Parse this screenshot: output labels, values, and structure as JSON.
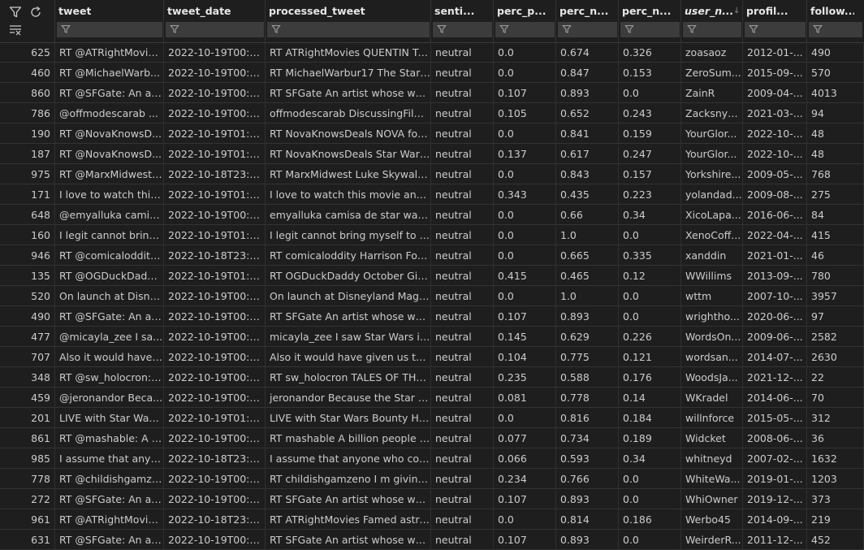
{
  "columns": [
    {
      "key": "idx",
      "label": ""
    },
    {
      "key": "tweet",
      "label": "tweet"
    },
    {
      "key": "tweet_date",
      "label": "tweet_date"
    },
    {
      "key": "processed_tweet",
      "label": "processed_tweet"
    },
    {
      "key": "sentiment",
      "label": "senti..."
    },
    {
      "key": "perc_pos",
      "label": "perc_p..."
    },
    {
      "key": "perc_neg",
      "label": "perc_n..."
    },
    {
      "key": "perc_neu",
      "label": "perc_n..."
    },
    {
      "key": "user_name",
      "label": "user_n...",
      "sorted": "descending"
    },
    {
      "key": "profile",
      "label": "profil..."
    },
    {
      "key": "followers",
      "label": "follow..."
    }
  ],
  "icons": {
    "filter": "filter-icon",
    "refresh": "refresh-icon",
    "clear_filters": "clear-filters-icon",
    "sort_desc": "sort-descending-icon"
  },
  "rows": [
    [
      "625",
      "RT @ATRightMovie...",
      "2022-10-19T00:2...",
      "RT ATRightMovies QUENTIN TA...",
      "neutral",
      "0.0",
      "0.674",
      "0.326",
      "zoasaoz",
      "2012-01-...",
      "490"
    ],
    [
      "460",
      "RT @MichaelWarb...",
      "2022-10-19T00:4...",
      "RT MichaelWarbur17 The Star ...",
      "neutral",
      "0.0",
      "0.847",
      "0.153",
      "ZeroSum...",
      "2015-09-...",
      "570"
    ],
    [
      "860",
      "RT @SFGate: An art...",
      "2022-10-19T00:0...",
      "RT SFGate An artist whose work...",
      "neutral",
      "0.107",
      "0.893",
      "0.0",
      "ZainR",
      "2009-04-...",
      "4013"
    ],
    [
      "786",
      "@offmodescarab ...",
      "2022-10-19T00:0...",
      "offmodescarab DiscussingFilm ...",
      "neutral",
      "0.105",
      "0.652",
      "0.243",
      "Zacksnyd...",
      "2021-03-...",
      "94"
    ],
    [
      "190",
      "RT @NovaKnowsD...",
      "2022-10-19T01:0...",
      "RT NovaKnowsDeals NOVA fou...",
      "neutral",
      "0.0",
      "0.841",
      "0.159",
      "YourGlor...",
      "2022-10-...",
      "48"
    ],
    [
      "187",
      "RT @NovaKnowsD...",
      "2022-10-19T01:0...",
      "RT NovaKnowsDeals Star Wars ...",
      "neutral",
      "0.137",
      "0.617",
      "0.247",
      "YourGlor...",
      "2022-10-...",
      "48"
    ],
    [
      "975",
      "RT @MarxMidwest:...",
      "2022-10-18T23:5...",
      "RT MarxMidwest Luke Skywalke...",
      "neutral",
      "0.0",
      "0.843",
      "0.157",
      "Yorkshire...",
      "2009-05-...",
      "768"
    ],
    [
      "171",
      "I love to watch this ...",
      "2022-10-19T01:0...",
      "I love to watch this movie and a...",
      "neutral",
      "0.343",
      "0.435",
      "0.223",
      "yolandad...",
      "2009-08-...",
      "275"
    ],
    [
      "648",
      "@emyalluka camis...",
      "2022-10-19T00:2...",
      "emyalluka camisa de star wars ...",
      "neutral",
      "0.0",
      "0.66",
      "0.34",
      "XicoLapa...",
      "2016-06-...",
      "84"
    ],
    [
      "160",
      "I legit cannot bring...",
      "2022-10-19T01:0...",
      "I legit cannot bring myself to b...",
      "neutral",
      "0.0",
      "1.0",
      "0.0",
      "XenoCoff...",
      "2022-04-...",
      "415"
    ],
    [
      "946",
      "RT @comicaloddity...",
      "2022-10-18T23:5...",
      "RT comicaloddity Harrison Ford...",
      "neutral",
      "0.0",
      "0.665",
      "0.335",
      "xanddin",
      "2021-01-...",
      "46"
    ],
    [
      "135",
      "RT @OGDuckDadd...",
      "2022-10-19T01:0...",
      "RT OGDuckDaddy October Give...",
      "neutral",
      "0.415",
      "0.465",
      "0.12",
      "WWillims",
      "2013-09-...",
      "780"
    ],
    [
      "520",
      "On launch at Disne...",
      "2022-10-19T00:3...",
      "On launch at Disneyland Magic...",
      "neutral",
      "0.0",
      "1.0",
      "0.0",
      "wttm",
      "2007-10-...",
      "3957"
    ],
    [
      "490",
      "RT @SFGate: An art...",
      "2022-10-19T00:3...",
      "RT SFGate An artist whose work...",
      "neutral",
      "0.107",
      "0.893",
      "0.0",
      "wrightho...",
      "2020-06-...",
      "97"
    ],
    [
      "477",
      "@micayla_zee I sa...",
      "2022-10-19T00:3...",
      "micayla_zee I saw Star Wars in t...",
      "neutral",
      "0.145",
      "0.629",
      "0.226",
      "WordsOn...",
      "2009-06-...",
      "2582"
    ],
    [
      "707",
      "Also it would have ...",
      "2022-10-19T00:1...",
      "Also it would have given us the ...",
      "neutral",
      "0.104",
      "0.775",
      "0.121",
      "wordsan...",
      "2014-07-...",
      "2630"
    ],
    [
      "348",
      "RT @sw_holocron: ...",
      "2022-10-19T00:5...",
      "RT sw_holocron TALES OF THE J...",
      "neutral",
      "0.235",
      "0.588",
      "0.176",
      "WoodsJa...",
      "2021-12-...",
      "22"
    ],
    [
      "459",
      "@jeronandor Beca...",
      "2022-10-19T00:4...",
      "jeronandor Because the Star W...",
      "neutral",
      "0.081",
      "0.778",
      "0.14",
      "WKradel",
      "2014-06-...",
      "70"
    ],
    [
      "201",
      "LIVE with Star Wars...",
      "2022-10-19T01:0...",
      "LIVE with Star Wars Bounty Hun...",
      "neutral",
      "0.0",
      "0.816",
      "0.184",
      "willnforce",
      "2015-05-...",
      "312"
    ],
    [
      "861",
      "RT @mashable: A b...",
      "2022-10-19T00:0...",
      "RT mashable A billion people la...",
      "neutral",
      "0.077",
      "0.734",
      "0.189",
      "Widcket",
      "2008-06-...",
      "36"
    ],
    [
      "985",
      "I assume that anyo...",
      "2022-10-18T23:5...",
      "I assume that anyone who com...",
      "neutral",
      "0.066",
      "0.593",
      "0.34",
      "whitneyd",
      "2007-02-...",
      "1632"
    ],
    [
      "778",
      "RT @childishgamze...",
      "2022-10-19T00:0...",
      "RT childishgamzeno I m giving ...",
      "neutral",
      "0.234",
      "0.766",
      "0.0",
      "WhiteWa...",
      "2019-01-...",
      "1203"
    ],
    [
      "272",
      "RT @SFGate: An art...",
      "2022-10-19T00:5...",
      "RT SFGate An artist whose work...",
      "neutral",
      "0.107",
      "0.893",
      "0.0",
      "WhiOwner",
      "2019-12-...",
      "373"
    ],
    [
      "961",
      "RT @ATRightMovie...",
      "2022-10-18T23:5...",
      "RT ATRightMovies Famed astro...",
      "neutral",
      "0.0",
      "0.814",
      "0.186",
      "Werbo45",
      "2014-09-...",
      "219"
    ],
    [
      "631",
      "RT @SFGate: An art...",
      "2022-10-19T00:2...",
      "RT SFGate An artist whose work...",
      "neutral",
      "0.107",
      "0.893",
      "0.0",
      "WeirderR...",
      "2011-12-...",
      "452"
    ]
  ]
}
